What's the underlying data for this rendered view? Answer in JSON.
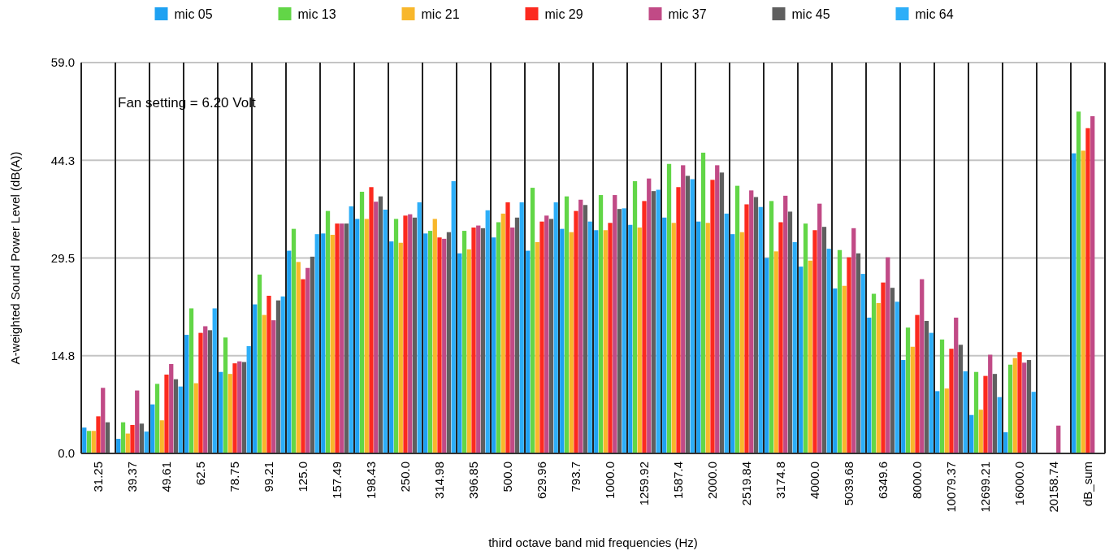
{
  "chart_data": {
    "type": "bar",
    "xlabel": "third octave band mid frequencies (Hz)",
    "ylabel": "A-weighted Sound Power Level (dB(A))",
    "categories": [
      "31.25",
      "39.37",
      "49.61",
      "62.5",
      "78.75",
      "99.21",
      "125.0",
      "157.49",
      "198.43",
      "250.0",
      "314.98",
      "396.85",
      "500.0",
      "629.96",
      "793.7",
      "1000.0",
      "1259.92",
      "1587.4",
      "2000.0",
      "2519.84",
      "3174.8",
      "4000.0",
      "5039.68",
      "6349.6",
      "8000.0",
      "10079.37",
      "12699.21",
      "16000.0",
      "20158.74",
      "dB_sum"
    ],
    "series": [
      {
        "name": "mic 05",
        "color": "#1ea1f2",
        "values": [
          3.9,
          2.2,
          7.4,
          17.9,
          12.3,
          22.5,
          30.6,
          33.2,
          35.4,
          32.0,
          33.2,
          30.2,
          32.6,
          30.6,
          33.9,
          33.7,
          34.5,
          35.6,
          35.0,
          33.1,
          29.5,
          28.2,
          24.9,
          20.5,
          14.1,
          9.4,
          5.8,
          3.2,
          null,
          45.3
        ]
      },
      {
        "name": "mic 13",
        "color": "#62d647",
        "values": [
          3.4,
          4.7,
          10.5,
          21.9,
          17.5,
          27.0,
          33.9,
          36.6,
          39.5,
          35.4,
          33.6,
          33.6,
          34.9,
          40.1,
          38.8,
          39.0,
          41.1,
          43.7,
          45.4,
          40.4,
          38.1,
          34.7,
          30.7,
          24.1,
          19.0,
          17.2,
          12.3,
          13.4,
          null,
          51.6
        ]
      },
      {
        "name": "mic 21",
        "color": "#f8b72b",
        "values": [
          3.4,
          3.0,
          5.0,
          10.6,
          12.0,
          20.9,
          28.9,
          33.0,
          35.4,
          31.8,
          35.4,
          30.8,
          36.2,
          31.9,
          33.4,
          33.7,
          34.1,
          34.8,
          34.8,
          33.4,
          30.5,
          29.1,
          25.3,
          22.7,
          16.1,
          9.8,
          6.6,
          14.4,
          null,
          45.7
        ]
      },
      {
        "name": "mic 29",
        "color": "#fc2a1f",
        "values": [
          5.6,
          4.3,
          11.9,
          18.2,
          13.6,
          23.8,
          26.3,
          34.7,
          40.2,
          35.9,
          32.6,
          34.1,
          37.9,
          35.0,
          36.6,
          34.8,
          38.1,
          40.2,
          41.3,
          37.6,
          34.9,
          33.7,
          29.6,
          25.8,
          20.9,
          15.8,
          11.7,
          15.3,
          null,
          49.1
        ]
      },
      {
        "name": "mic 37",
        "color": "#c14a86",
        "values": [
          9.9,
          9.5,
          13.5,
          19.2,
          13.9,
          20.1,
          28.0,
          34.7,
          38.0,
          36.1,
          32.4,
          34.4,
          34.1,
          35.9,
          38.3,
          39.0,
          41.5,
          43.5,
          43.5,
          39.7,
          38.9,
          37.7,
          34.0,
          29.6,
          26.3,
          20.5,
          14.9,
          13.7,
          4.2,
          50.9
        ]
      },
      {
        "name": "mic 45",
        "color": "#5f5f5f",
        "values": [
          4.7,
          4.5,
          11.2,
          18.6,
          13.8,
          23.1,
          29.7,
          34.7,
          38.8,
          35.6,
          33.4,
          34.0,
          35.6,
          35.4,
          37.5,
          36.9,
          39.6,
          41.9,
          42.4,
          38.7,
          36.5,
          34.2,
          30.2,
          25.0,
          20.0,
          16.4,
          12.0,
          14.1,
          null,
          null
        ]
      },
      {
        "name": "mic 64",
        "color": "#2daef8",
        "values": [
          null,
          3.3,
          10.1,
          21.9,
          16.2,
          23.7,
          33.1,
          37.3,
          36.8,
          37.9,
          41.1,
          36.7,
          37.9,
          37.9,
          35.0,
          37.0,
          39.8,
          41.4,
          36.2,
          37.2,
          31.9,
          30.9,
          27.1,
          22.9,
          18.2,
          12.4,
          8.5,
          9.3,
          null,
          null
        ]
      }
    ],
    "ylim": [
      0,
      59
    ],
    "yticks": [
      {
        "value": 0,
        "label": "0.0"
      },
      {
        "value": 14.75,
        "label": "14.8"
      },
      {
        "value": 29.5,
        "label": "29.5"
      },
      {
        "value": 44.25,
        "label": "44.3"
      },
      {
        "value": 59,
        "label": "59.0"
      }
    ],
    "grid": true,
    "legend": "top",
    "annotations": [
      "Fan setting = 6.20 Volt"
    ]
  }
}
